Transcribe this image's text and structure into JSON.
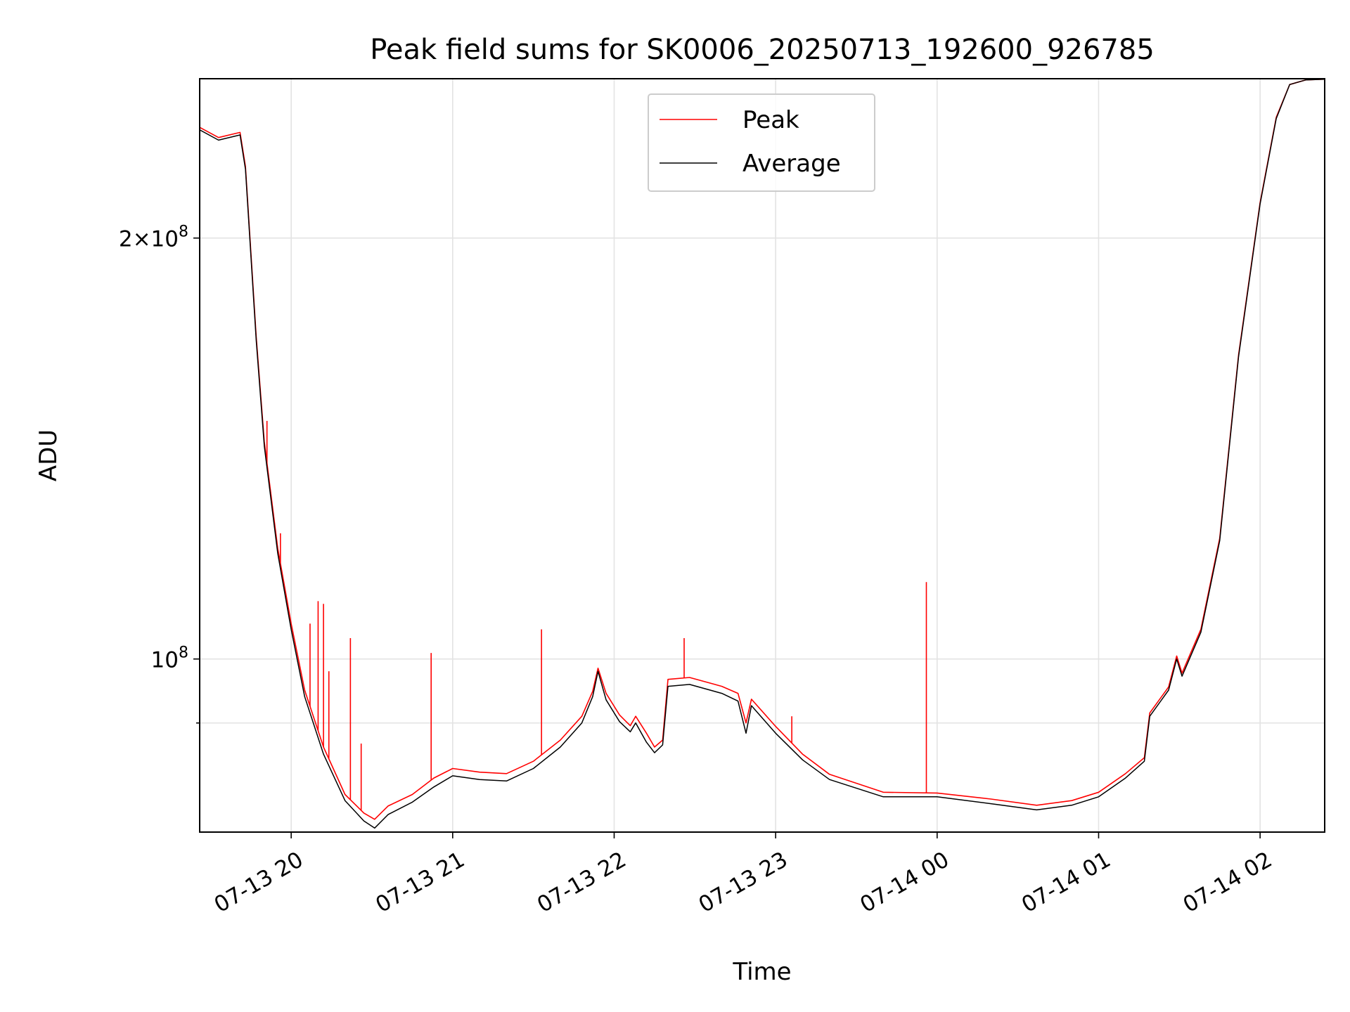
{
  "chart_data": {
    "type": "line",
    "title": "Peak field sums for SK0006_20250713_192600_926785",
    "xlabel": "Time",
    "ylabel": "ADU",
    "yscale": "log",
    "grid": true,
    "legend_position": "top-center",
    "xlim": [
      "2025-07-13 19:26",
      "2025-07-14 02:24"
    ],
    "ylim": [
      75200000,
      260000000
    ],
    "x_ticks": [
      {
        "label": "07-13 20",
        "value": "2025-07-13 20:00"
      },
      {
        "label": "07-13 21",
        "value": "2025-07-13 21:00"
      },
      {
        "label": "07-13 22",
        "value": "2025-07-13 22:00"
      },
      {
        "label": "07-13 23",
        "value": "2025-07-13 23:00"
      },
      {
        "label": "07-14 00",
        "value": "2025-07-14 00:00"
      },
      {
        "label": "07-14 01",
        "value": "2025-07-14 01:00"
      },
      {
        "label": "07-14 02",
        "value": "2025-07-14 02:00"
      }
    ],
    "y_ticks": [
      {
        "value": 100000000,
        "base": "10",
        "exp": "8",
        "coef": ""
      },
      {
        "value": 200000000,
        "base": "10",
        "exp": "8",
        "coef": "2×"
      }
    ],
    "y_minor_ticks": [
      90000000
    ],
    "series": [
      {
        "name": "Peak",
        "color": "#ff0000",
        "points": [
          [
            "2025-07-13 19:26",
            240000000
          ],
          [
            "2025-07-13 19:33",
            236000000
          ],
          [
            "2025-07-13 19:41",
            238000000
          ],
          [
            "2025-07-13 19:43",
            225000000
          ],
          [
            "2025-07-13 19:47",
            170000000
          ],
          [
            "2025-07-13 19:50",
            143000000
          ],
          [
            "2025-07-13 19:55",
            120000000
          ],
          [
            "2025-07-13 20:00",
            106000000
          ],
          [
            "2025-07-13 20:05",
            95000000
          ],
          [
            "2025-07-13 20:12",
            86500000
          ],
          [
            "2025-07-13 20:20",
            80000000
          ],
          [
            "2025-07-13 20:27",
            77600000
          ],
          [
            "2025-07-13 20:31",
            76800000
          ],
          [
            "2025-07-13 20:36",
            78500000
          ],
          [
            "2025-07-13 20:45",
            80000000
          ],
          [
            "2025-07-13 20:53",
            82200000
          ],
          [
            "2025-07-13 21:00",
            83500000
          ],
          [
            "2025-07-13 21:10",
            83000000
          ],
          [
            "2025-07-13 21:20",
            82800000
          ],
          [
            "2025-07-13 21:30",
            84500000
          ],
          [
            "2025-07-13 21:40",
            87500000
          ],
          [
            "2025-07-13 21:48",
            91000000
          ],
          [
            "2025-07-13 21:52",
            94800000
          ],
          [
            "2025-07-13 21:54",
            98500000
          ],
          [
            "2025-07-13 21:57",
            94500000
          ],
          [
            "2025-07-13 22:02",
            91200000
          ],
          [
            "2025-07-13 22:06",
            89600000
          ],
          [
            "2025-07-13 22:08",
            91000000
          ],
          [
            "2025-07-13 22:12",
            88500000
          ],
          [
            "2025-07-13 22:15",
            86500000
          ],
          [
            "2025-07-13 22:18",
            87500000
          ],
          [
            "2025-07-13 22:20",
            96700000
          ],
          [
            "2025-07-13 22:28",
            97000000
          ],
          [
            "2025-07-13 22:40",
            95600000
          ],
          [
            "2025-07-13 22:46",
            94500000
          ],
          [
            "2025-07-13 22:49",
            90000000
          ],
          [
            "2025-07-13 22:51",
            93600000
          ],
          [
            "2025-07-13 23:00",
            89500000
          ],
          [
            "2025-07-13 23:10",
            85500000
          ],
          [
            "2025-07-13 23:20",
            82700000
          ],
          [
            "2025-07-13 23:40",
            80300000
          ],
          [
            "2025-07-14 00:00",
            80200000
          ],
          [
            "2025-07-14 00:20",
            79400000
          ],
          [
            "2025-07-14 00:37",
            78600000
          ],
          [
            "2025-07-14 00:50",
            79200000
          ],
          [
            "2025-07-14 01:00",
            80300000
          ],
          [
            "2025-07-14 01:10",
            82800000
          ],
          [
            "2025-07-14 01:17",
            85000000
          ],
          [
            "2025-07-14 01:19",
            91500000
          ],
          [
            "2025-07-14 01:26",
            95500000
          ],
          [
            "2025-07-14 01:29",
            100500000
          ],
          [
            "2025-07-14 01:31",
            97700000
          ],
          [
            "2025-07-14 01:38",
            105000000
          ],
          [
            "2025-07-14 01:45",
            122000000
          ],
          [
            "2025-07-14 01:52",
            165000000
          ],
          [
            "2025-07-14 02:00",
            212000000
          ],
          [
            "2025-07-14 02:06",
            244000000
          ],
          [
            "2025-07-14 02:11",
            257500000
          ],
          [
            "2025-07-14 02:17",
            259500000
          ],
          [
            "2025-07-14 02:24",
            259800000
          ]
        ],
        "spikes": [
          [
            "2025-07-13 19:51",
            148000000
          ],
          [
            "2025-07-13 19:56",
            123000000
          ],
          [
            "2025-07-13 20:07",
            106000000
          ],
          [
            "2025-07-13 20:10",
            110000000
          ],
          [
            "2025-07-13 20:12",
            109500000
          ],
          [
            "2025-07-13 20:14",
            98000000
          ],
          [
            "2025-07-13 20:22",
            103500000
          ],
          [
            "2025-07-13 20:26",
            87000000
          ],
          [
            "2025-07-13 20:52",
            101000000
          ],
          [
            "2025-07-13 21:33",
            105000000
          ],
          [
            "2025-07-13 22:26",
            103500000
          ],
          [
            "2025-07-13 23:06",
            91000000
          ],
          [
            "2025-07-13 23:56",
            113500000
          ]
        ]
      },
      {
        "name": "Average",
        "color": "#000000",
        "points": [
          [
            "2025-07-13 19:26",
            239000000
          ],
          [
            "2025-07-13 19:33",
            235000000
          ],
          [
            "2025-07-13 19:41",
            237000000
          ],
          [
            "2025-07-13 19:43",
            224000000
          ],
          [
            "2025-07-13 19:47",
            169000000
          ],
          [
            "2025-07-13 19:50",
            142000000
          ],
          [
            "2025-07-13 19:55",
            119000000
          ],
          [
            "2025-07-13 20:00",
            105000000
          ],
          [
            "2025-07-13 20:05",
            94000000
          ],
          [
            "2025-07-13 20:12",
            85500000
          ],
          [
            "2025-07-13 20:20",
            79200000
          ],
          [
            "2025-07-13 20:27",
            76600000
          ],
          [
            "2025-07-13 20:31",
            75700000
          ],
          [
            "2025-07-13 20:36",
            77400000
          ],
          [
            "2025-07-13 20:45",
            79000000
          ],
          [
            "2025-07-13 20:53",
            81000000
          ],
          [
            "2025-07-13 21:00",
            82500000
          ],
          [
            "2025-07-13 21:10",
            82000000
          ],
          [
            "2025-07-13 21:20",
            81800000
          ],
          [
            "2025-07-13 21:30",
            83500000
          ],
          [
            "2025-07-13 21:40",
            86500000
          ],
          [
            "2025-07-13 21:48",
            90000000
          ],
          [
            "2025-07-13 21:52",
            94000000
          ],
          [
            "2025-07-13 21:54",
            98000000
          ],
          [
            "2025-07-13 21:57",
            93500000
          ],
          [
            "2025-07-13 22:02",
            90200000
          ],
          [
            "2025-07-13 22:06",
            88700000
          ],
          [
            "2025-07-13 22:08",
            90000000
          ],
          [
            "2025-07-13 22:12",
            87200000
          ],
          [
            "2025-07-13 22:15",
            85700000
          ],
          [
            "2025-07-13 22:18",
            86800000
          ],
          [
            "2025-07-13 22:20",
            95600000
          ],
          [
            "2025-07-13 22:28",
            95900000
          ],
          [
            "2025-07-13 22:40",
            94500000
          ],
          [
            "2025-07-13 22:46",
            93300000
          ],
          [
            "2025-07-13 22:49",
            88500000
          ],
          [
            "2025-07-13 22:51",
            92600000
          ],
          [
            "2025-07-13 23:00",
            88500000
          ],
          [
            "2025-07-13 23:10",
            84700000
          ],
          [
            "2025-07-13 23:20",
            82000000
          ],
          [
            "2025-07-13 23:40",
            79700000
          ],
          [
            "2025-07-14 00:00",
            79700000
          ],
          [
            "2025-07-14 00:20",
            78800000
          ],
          [
            "2025-07-14 00:37",
            78000000
          ],
          [
            "2025-07-14 00:50",
            78600000
          ],
          [
            "2025-07-14 01:00",
            79700000
          ],
          [
            "2025-07-14 01:10",
            82200000
          ],
          [
            "2025-07-14 01:17",
            84500000
          ],
          [
            "2025-07-14 01:19",
            91000000
          ],
          [
            "2025-07-14 01:26",
            95000000
          ],
          [
            "2025-07-14 01:29",
            100000000
          ],
          [
            "2025-07-14 01:31",
            97200000
          ],
          [
            "2025-07-14 01:38",
            104500000
          ],
          [
            "2025-07-14 01:45",
            121500000
          ],
          [
            "2025-07-14 01:52",
            164500000
          ],
          [
            "2025-07-14 02:00",
            211500000
          ],
          [
            "2025-07-14 02:06",
            243500000
          ],
          [
            "2025-07-14 02:11",
            257500000
          ],
          [
            "2025-07-14 02:17",
            259500000
          ],
          [
            "2025-07-14 02:24",
            259800000
          ]
        ]
      }
    ]
  }
}
